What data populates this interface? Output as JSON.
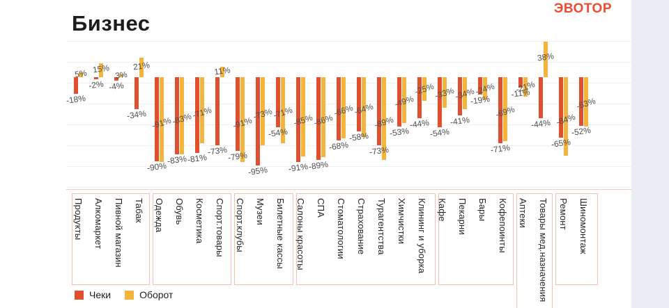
{
  "header": {
    "title": "Бизнес",
    "logo": "ЭВОТОР"
  },
  "legend": {
    "items": [
      {
        "label": "Чеки",
        "color": "#e1502e"
      },
      {
        "label": "Оборот",
        "color": "#f5b53c"
      }
    ]
  },
  "colors": {
    "cheki_bar": "#e1502e",
    "oborot_bar": "#f5b53c",
    "logo": "#f04a31",
    "value_label_text": "#4f4f4f",
    "category_box_border": "#f3c1ae",
    "right_band": "#ebedf3"
  },
  "chart_data": {
    "type": "bar",
    "title": "Бизнес",
    "unit": "%",
    "ylim": [
      -100,
      40
    ],
    "grid": true,
    "legend_position": "bottom-left",
    "categories": [
      "Продукты",
      "Алкомаркет",
      "Пивной магазин",
      "Табак",
      "Одежда",
      "Обувь",
      "Косметика",
      "Спорт.товары",
      "Спорт.клубы",
      "Музеи",
      "Билетные кассы",
      "Салоны красоты",
      "СПА",
      "Стоматологии",
      "Страхование",
      "Турагентства",
      "Химчистки",
      "Клининг и уборка",
      "Кафе",
      "Пекарни",
      "Бары",
      "Кофепоинты",
      "Аптеки",
      "Товары мед.назначения",
      "Ремонт",
      "Шиномонтаж"
    ],
    "series": [
      {
        "name": "Чеки",
        "values": [
          -18,
          -2,
          -4,
          -34,
          -90,
          -83,
          -81,
          -73,
          -79,
          -95,
          -54,
          -91,
          -89,
          -68,
          -58,
          -73,
          -53,
          -44,
          -54,
          -41,
          -19,
          -71,
          -11,
          -44,
          -65,
          -52
        ]
      },
      {
        "name": "Оборот",
        "values": [
          5,
          15,
          3,
          21,
          -91,
          -83,
          -71,
          11,
          -91,
          -73,
          -71,
          -85,
          -86,
          -66,
          -64,
          -89,
          -49,
          -25,
          -33,
          -34,
          -24,
          -69,
          -21,
          38,
          -84,
          -53
        ]
      }
    ],
    "category_groups": [
      [
        0,
        3
      ],
      [
        4,
        7
      ],
      [
        8,
        10
      ],
      [
        11,
        17
      ],
      [
        18,
        21
      ],
      [
        22,
        23
      ],
      [
        24,
        25
      ]
    ]
  }
}
